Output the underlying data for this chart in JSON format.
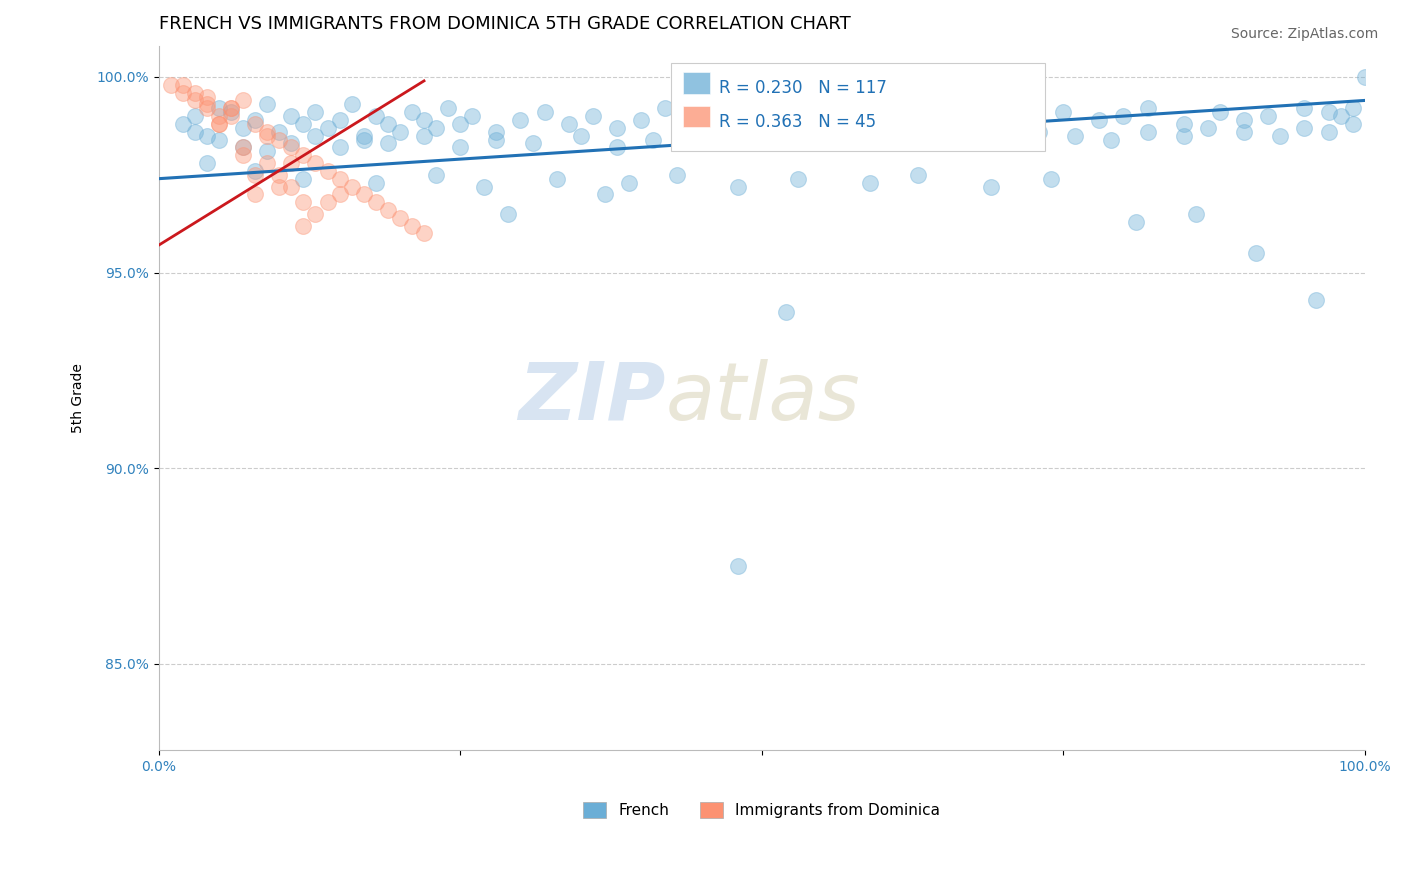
{
  "title": "FRENCH VS IMMIGRANTS FROM DOMINICA 5TH GRADE CORRELATION CHART",
  "source_text": "Source: ZipAtlas.com",
  "ylabel": "5th Grade",
  "xlim": [
    0,
    1
  ],
  "ylim": [
    0.828,
    1.008
  ],
  "yticks": [
    0.85,
    0.9,
    0.95,
    1.0
  ],
  "ytick_labels": [
    "85.0%",
    "90.0%",
    "95.0%",
    "100.0%"
  ],
  "xticks": [
    0.0,
    0.25,
    0.5,
    0.75,
    1.0
  ],
  "xtick_labels": [
    "0.0%",
    "",
    "",
    "",
    "100.0%"
  ],
  "title_fontsize": 13,
  "source_fontsize": 10,
  "axis_label_fontsize": 10,
  "tick_fontsize": 10,
  "legend_R_blue": "R = 0.230",
  "legend_N_blue": "N = 117",
  "legend_R_pink": "R = 0.363",
  "legend_N_pink": "N = 45",
  "blue_color": "#6baed6",
  "pink_color": "#fc9272",
  "blue_line_color": "#2171b5",
  "pink_line_color": "#cb181d",
  "watermark_zip": "ZIP",
  "watermark_atlas": "atlas",
  "blue_scatter_x": [
    0.02,
    0.03,
    0.04,
    0.05,
    0.06,
    0.07,
    0.08,
    0.09,
    0.1,
    0.11,
    0.12,
    0.13,
    0.14,
    0.15,
    0.16,
    0.17,
    0.18,
    0.19,
    0.2,
    0.21,
    0.22,
    0.23,
    0.24,
    0.25,
    0.26,
    0.28,
    0.3,
    0.32,
    0.34,
    0.36,
    0.38,
    0.4,
    0.42,
    0.45,
    0.47,
    0.5,
    0.55,
    0.6,
    0.62,
    0.65,
    0.68,
    0.7,
    0.72,
    0.75,
    0.78,
    0.8,
    0.82,
    0.85,
    0.88,
    0.9,
    0.92,
    0.95,
    0.97,
    0.98,
    0.99,
    1.0,
    0.03,
    0.05,
    0.07,
    0.09,
    0.11,
    0.13,
    0.15,
    0.17,
    0.19,
    0.22,
    0.25,
    0.28,
    0.31,
    0.35,
    0.38,
    0.41,
    0.44,
    0.47,
    0.51,
    0.54,
    0.58,
    0.61,
    0.64,
    0.67,
    0.7,
    0.73,
    0.76,
    0.79,
    0.82,
    0.85,
    0.87,
    0.9,
    0.93,
    0.95,
    0.97,
    0.99,
    0.04,
    0.08,
    0.12,
    0.18,
    0.23,
    0.27,
    0.33,
    0.39,
    0.43,
    0.48,
    0.53,
    0.59,
    0.63,
    0.69,
    0.74,
    0.81,
    0.86,
    0.91,
    0.96,
    0.52,
    0.37,
    0.29,
    0.48
  ],
  "blue_scatter_y": [
    0.988,
    0.99,
    0.985,
    0.992,
    0.991,
    0.987,
    0.989,
    0.993,
    0.986,
    0.99,
    0.988,
    0.991,
    0.987,
    0.989,
    0.993,
    0.985,
    0.99,
    0.988,
    0.986,
    0.991,
    0.989,
    0.987,
    0.992,
    0.988,
    0.99,
    0.986,
    0.989,
    0.991,
    0.988,
    0.99,
    0.987,
    0.989,
    0.992,
    0.988,
    0.991,
    0.99,
    0.989,
    0.988,
    0.991,
    0.989,
    0.99,
    0.992,
    0.988,
    0.991,
    0.989,
    0.99,
    0.992,
    0.988,
    0.991,
    0.989,
    0.99,
    0.992,
    0.991,
    0.99,
    0.992,
    1.0,
    0.986,
    0.984,
    0.982,
    0.981,
    0.983,
    0.985,
    0.982,
    0.984,
    0.983,
    0.985,
    0.982,
    0.984,
    0.983,
    0.985,
    0.982,
    0.984,
    0.983,
    0.985,
    0.984,
    0.983,
    0.985,
    0.984,
    0.983,
    0.985,
    0.984,
    0.986,
    0.985,
    0.984,
    0.986,
    0.985,
    0.987,
    0.986,
    0.985,
    0.987,
    0.986,
    0.988,
    0.978,
    0.976,
    0.974,
    0.973,
    0.975,
    0.972,
    0.974,
    0.973,
    0.975,
    0.972,
    0.974,
    0.973,
    0.975,
    0.972,
    0.974,
    0.963,
    0.965,
    0.955,
    0.943,
    0.94,
    0.97,
    0.965,
    0.875
  ],
  "pink_scatter_x": [
    0.01,
    0.02,
    0.03,
    0.04,
    0.05,
    0.06,
    0.07,
    0.08,
    0.09,
    0.1,
    0.11,
    0.12,
    0.13,
    0.14,
    0.15,
    0.16,
    0.17,
    0.18,
    0.19,
    0.2,
    0.21,
    0.22,
    0.03,
    0.05,
    0.08,
    0.12,
    0.07,
    0.14,
    0.1,
    0.06,
    0.09,
    0.04,
    0.11,
    0.15,
    0.02,
    0.13,
    0.08,
    0.06,
    0.1,
    0.05,
    0.12,
    0.07,
    0.09,
    0.04,
    0.11
  ],
  "pink_scatter_y": [
    0.998,
    0.996,
    0.994,
    0.992,
    0.99,
    0.992,
    0.994,
    0.988,
    0.986,
    0.984,
    0.982,
    0.98,
    0.978,
    0.976,
    0.974,
    0.972,
    0.97,
    0.968,
    0.966,
    0.964,
    0.962,
    0.96,
    0.996,
    0.988,
    0.975,
    0.962,
    0.98,
    0.968,
    0.972,
    0.99,
    0.985,
    0.993,
    0.978,
    0.97,
    0.998,
    0.965,
    0.97,
    0.992,
    0.975,
    0.988,
    0.968,
    0.982,
    0.978,
    0.995,
    0.972
  ],
  "blue_trend_x": [
    0.0,
    1.0
  ],
  "blue_trend_y": [
    0.974,
    0.994
  ],
  "pink_trend_x": [
    0.0,
    0.22
  ],
  "pink_trend_y": [
    0.957,
    0.999
  ],
  "background_color": "#ffffff",
  "grid_color": "#cccccc",
  "marker_size": 130,
  "marker_alpha": 0.4,
  "marker_linewidth": 0.8
}
